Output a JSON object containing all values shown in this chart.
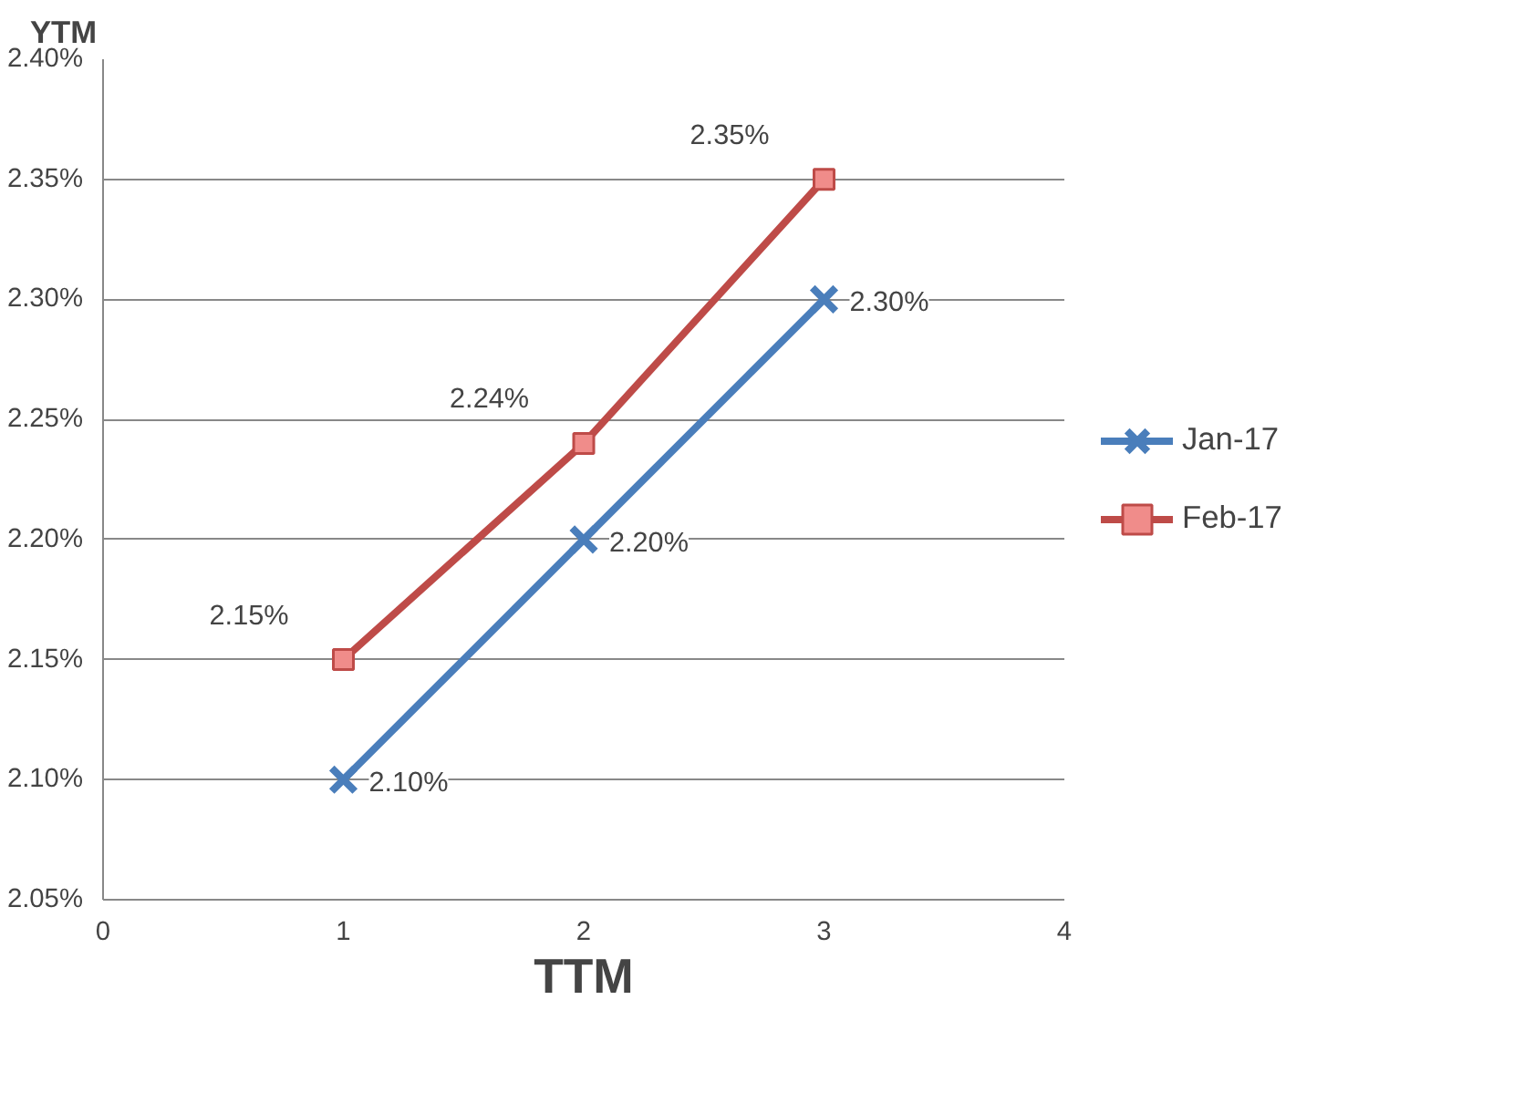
{
  "chart_data": {
    "type": "line",
    "xlabel": "TTM",
    "ylabel": "YTM",
    "x": [
      1,
      2,
      3
    ],
    "series": [
      {
        "name": "Jan-17",
        "color": "#4a7ebb",
        "marker": "cross",
        "values": [
          2.1,
          2.2,
          2.3
        ],
        "value_labels": [
          "2.10%",
          "2.20%",
          "2.30%"
        ]
      },
      {
        "name": "Feb-17",
        "color": "#be4b48",
        "marker": "square",
        "values": [
          2.15,
          2.24,
          2.35
        ],
        "value_labels": [
          "2.15%",
          "2.24%",
          "2.35%"
        ]
      }
    ],
    "xlim": [
      0,
      4
    ],
    "xticks": [
      0,
      1,
      2,
      3,
      4
    ],
    "ylim": [
      2.05,
      2.4
    ],
    "yticks": [
      {
        "value": 2.05,
        "label": "2.05%"
      },
      {
        "value": 2.1,
        "label": "2.10%"
      },
      {
        "value": 2.15,
        "label": "2.15%"
      },
      {
        "value": 2.2,
        "label": "2.20%"
      },
      {
        "value": 2.25,
        "label": "2.25%"
      },
      {
        "value": 2.3,
        "label": "2.30%"
      },
      {
        "value": 2.35,
        "label": "2.35%"
      },
      {
        "value": 2.4,
        "label": "2.40%"
      }
    ],
    "grid": "y",
    "legend": "right",
    "line_style": "solid"
  }
}
